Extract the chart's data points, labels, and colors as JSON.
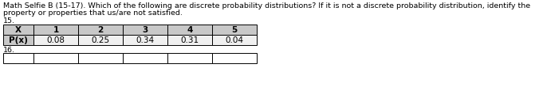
{
  "title_text": "Math Selfie B (15-17). Which of the following are discrete probability distributions? If it is not a discrete probability distribution, identify the",
  "title_line2": "property or properties that us/are not satisfied.",
  "number_15": "15.",
  "number_16": "16.",
  "table_headers": [
    "X",
    "1",
    "2",
    "3",
    "4",
    "5"
  ],
  "table_row_label": "P(x)",
  "table_values": [
    "0.08",
    "0.25",
    "0.34",
    "0.31",
    "0.04"
  ],
  "header_bg": "#c8c8c8",
  "row_bg": "#f0f0f0",
  "border_color": "#000000",
  "font_size_title": 6.8,
  "font_size_table": 7.5,
  "bg_color": "#ffffff"
}
